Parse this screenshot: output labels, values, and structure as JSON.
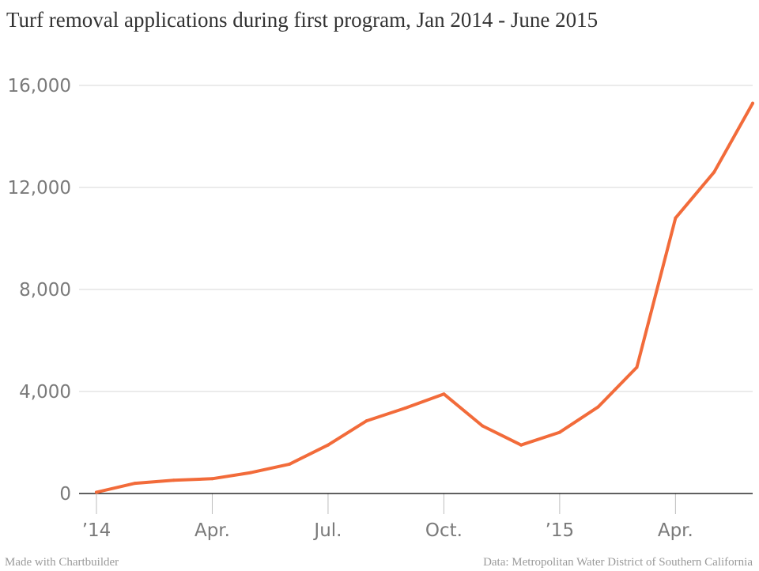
{
  "colors": {
    "line": "#f26b3a"
  },
  "chart_data": {
    "type": "line",
    "title": "Turf removal applications during first program, Jan 2014 - June 2015",
    "xlabel": "",
    "ylabel": "",
    "ylim": [
      0,
      16000
    ],
    "yticks": [
      {
        "value": 0,
        "label": "0"
      },
      {
        "value": 4000,
        "label": "4,000"
      },
      {
        "value": 8000,
        "label": "8,000"
      },
      {
        "value": 12000,
        "label": "12,000"
      },
      {
        "value": 16000,
        "label": "16,000"
      }
    ],
    "xlim": [
      0,
      17
    ],
    "xticks": [
      {
        "value": 0,
        "label": "’14"
      },
      {
        "value": 3,
        "label": "Apr."
      },
      {
        "value": 6,
        "label": "Jul."
      },
      {
        "value": 9,
        "label": "Oct."
      },
      {
        "value": 12,
        "label": "’15"
      },
      {
        "value": 15,
        "label": "Apr."
      }
    ],
    "grid": true,
    "series": [
      {
        "name": "Turf removal applications",
        "x": [
          "Jan 2014",
          "Feb 2014",
          "Mar 2014",
          "Apr 2014",
          "May 2014",
          "Jun 2014",
          "Jul 2014",
          "Aug 2014",
          "Sep 2014",
          "Oct 2014",
          "Nov 2014",
          "Dec 2014",
          "Jan 2015",
          "Feb 2015",
          "Mar 2015",
          "Apr 2015",
          "May 2015",
          "Jun 2015"
        ],
        "values": [
          50,
          400,
          520,
          580,
          820,
          1150,
          1900,
          2850,
          3350,
          3900,
          2650,
          1900,
          2400,
          3400,
          4950,
          10800,
          12600,
          15300
        ]
      }
    ]
  },
  "footer": {
    "left": "Made with Chartbuilder",
    "right": "Data: Metropolitan Water District of Southern California"
  }
}
